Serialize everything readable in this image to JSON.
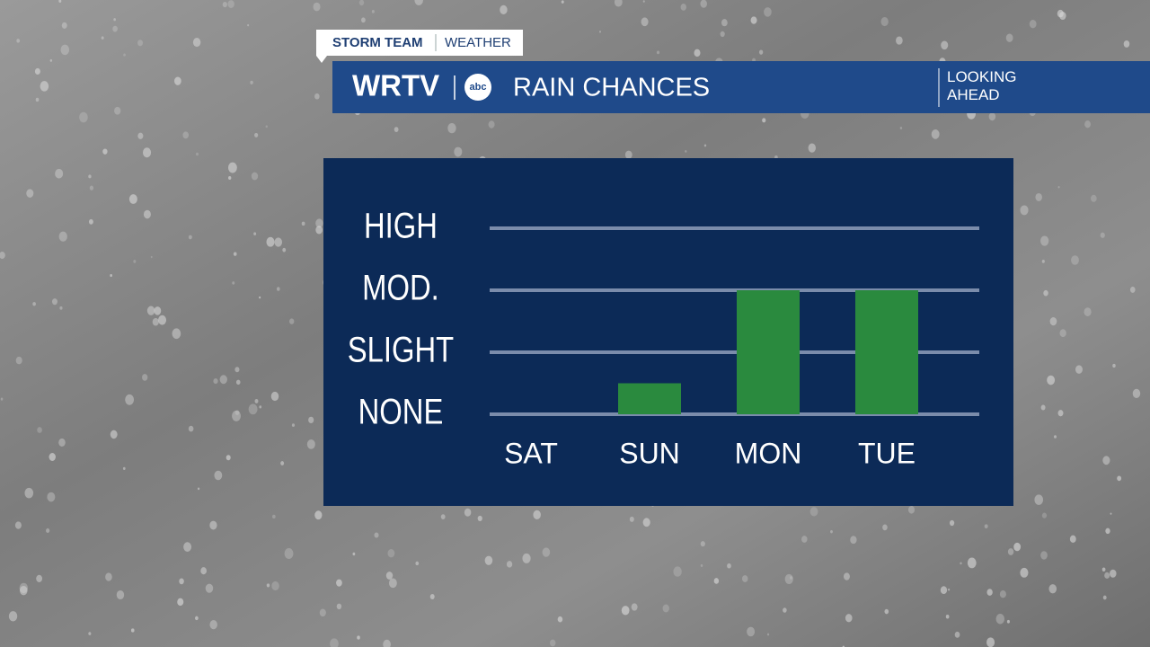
{
  "header": {
    "brand": "STORM TEAM",
    "section": "WEATHER",
    "station": "WRTV",
    "network": "abc",
    "tag": "LOOKING AHEAD"
  },
  "chart_data": {
    "type": "bar",
    "title": "RAIN CHANCES",
    "categories": [
      "SAT",
      "SUN",
      "MON",
      "TUE"
    ],
    "values": [
      0,
      0.5,
      2,
      2
    ],
    "color": "#2a8a3e",
    "ylim": [
      0,
      3
    ],
    "yticks": [
      {
        "value": 0,
        "label": "NONE"
      },
      {
        "value": 1,
        "label": "SLIGHT"
      },
      {
        "value": 2,
        "label": "MOD."
      },
      {
        "value": 3,
        "label": "HIGH"
      }
    ],
    "grid": true
  }
}
